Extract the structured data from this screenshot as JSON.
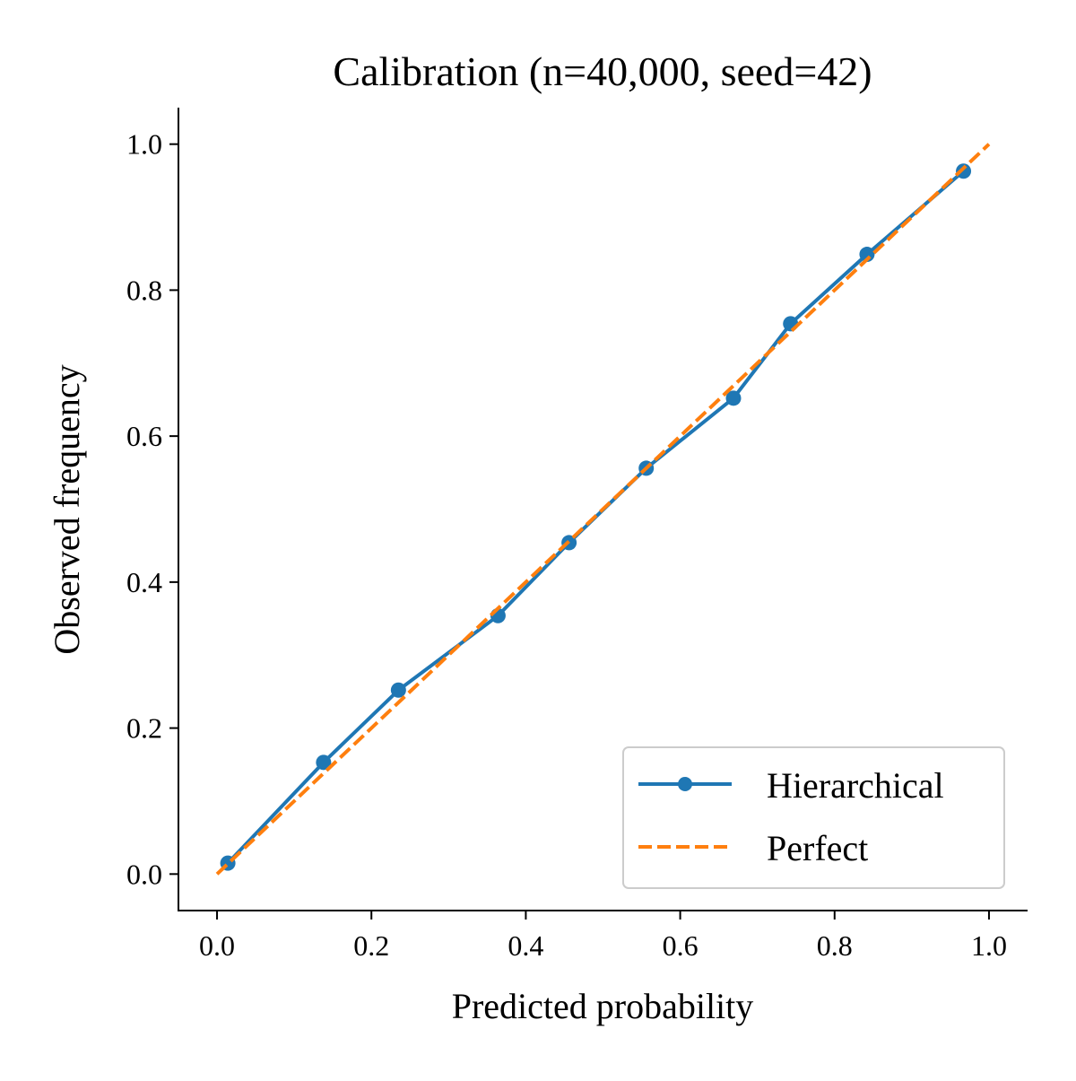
{
  "chart_data": {
    "type": "line",
    "title": "Calibration (n=40,000, seed=42)",
    "xlabel": "Predicted probability",
    "ylabel": "Observed frequency",
    "xlim": [
      -0.05,
      1.05
    ],
    "ylim": [
      -0.05,
      1.05
    ],
    "xticks": [
      "0.0",
      "0.2",
      "0.4",
      "0.6",
      "0.8",
      "1.0"
    ],
    "yticks": [
      "0.0",
      "0.2",
      "0.4",
      "0.6",
      "0.8",
      "1.0"
    ],
    "grid": false,
    "legend_position": "lower-right",
    "series": [
      {
        "name": "Hierarchical",
        "color": "#1f77b4",
        "style": "solid-with-markers",
        "x": [
          0.014,
          0.138,
          0.235,
          0.364,
          0.456,
          0.556,
          0.669,
          0.743,
          0.842,
          0.967
        ],
        "y": [
          0.015,
          0.153,
          0.252,
          0.354,
          0.454,
          0.556,
          0.652,
          0.754,
          0.849,
          0.963
        ]
      },
      {
        "name": "Perfect",
        "color": "#ff7f0e",
        "style": "dashed",
        "x": [
          0,
          1
        ],
        "y": [
          0,
          1
        ]
      }
    ]
  }
}
